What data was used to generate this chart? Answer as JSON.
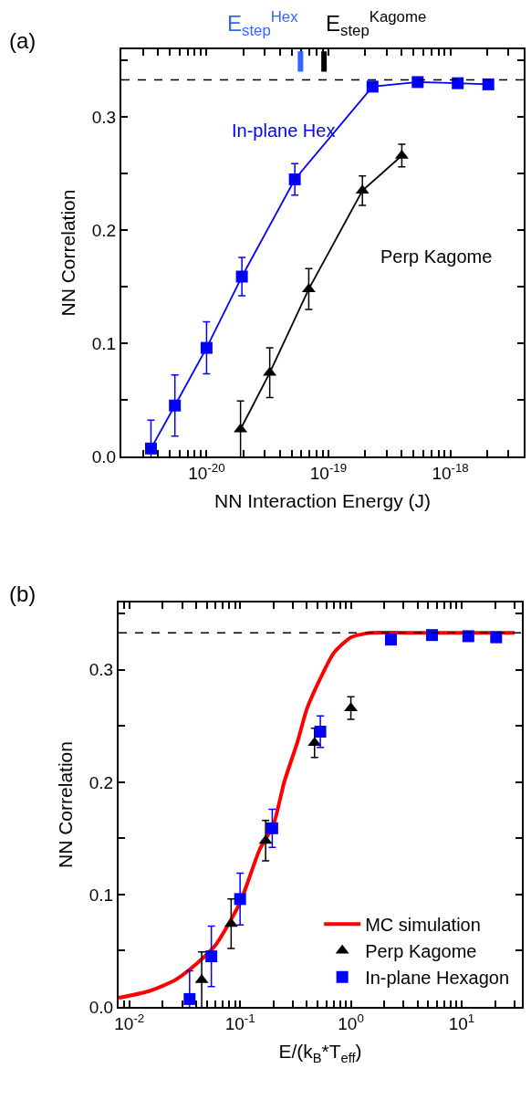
{
  "chart_data": [
    {
      "type": "line",
      "xlabel": "NN Interaction Energy (J)",
      "ylabel": "NN Correlation",
      "annotations": [
        "(a)"
      ],
      "log": "x",
      "legend": false,
      "xlim": [
        2e-21,
        4e-18
      ],
      "ylim": [
        0,
        0.36
      ],
      "xticks": [
        {
          "value": 2e-21,
          "label": null
        },
        {
          "value": 3e-21,
          "label": null
        },
        {
          "value": 4e-21,
          "label": null
        },
        {
          "value": 5e-21,
          "label": null
        },
        {
          "value": 6e-21,
          "label": null
        },
        {
          "value": 7e-21,
          "label": null
        },
        {
          "value": 8e-21,
          "label": null
        },
        {
          "value": 9e-21,
          "label": null
        },
        {
          "value": 1e-20,
          "label": "10$^{-20}$"
        },
        {
          "value": 2e-20,
          "label": null
        },
        {
          "value": 3e-20,
          "label": null
        },
        {
          "value": 4e-20,
          "label": null
        },
        {
          "value": 5e-20,
          "label": null
        },
        {
          "value": 6e-20,
          "label": null
        },
        {
          "value": 7e-20,
          "label": null
        },
        {
          "value": 8e-20,
          "label": null
        },
        {
          "value": 9e-20,
          "label": null
        },
        {
          "value": 1e-19,
          "label": "10$^{-19}$"
        },
        {
          "value": 2e-19,
          "label": null
        },
        {
          "value": 3e-19,
          "label": null
        },
        {
          "value": 4e-19,
          "label": null
        },
        {
          "value": 5e-19,
          "label": null
        },
        {
          "value": 6e-19,
          "label": null
        },
        {
          "value": 7e-19,
          "label": null
        },
        {
          "value": 8e-19,
          "label": null
        },
        {
          "value": 9e-19,
          "label": null
        },
        {
          "value": 1e-18,
          "label": "10$^{-18}$"
        },
        {
          "value": 2e-18,
          "label": null
        },
        {
          "value": 3e-18,
          "label": null
        },
        {
          "value": 4e-18,
          "label": null
        }
      ],
      "yticks": [
        {
          "value": 0,
          "label": "0.0"
        },
        {
          "value": 0.05,
          "label": null
        },
        {
          "value": 0.1,
          "label": "0.1"
        },
        {
          "value": 0.15,
          "label": null
        },
        {
          "value": 0.2,
          "label": "0.2"
        },
        {
          "value": 0.25,
          "label": null
        },
        {
          "value": 0.3,
          "label": "0.3"
        },
        {
          "value": 0.35,
          "label": null
        }
      ],
      "ref_lines": [
        {
          "axis": "y",
          "value": 0.333,
          "label": null,
          "color": "#000000",
          "line_style": "dashed"
        },
        {
          "axis": "x",
          "value": 5.9e-20,
          "label": "E$_{step}$$^{Hex}$",
          "color": "#3366ff"
        },
        {
          "axis": "x",
          "value": 9.2e-20,
          "label": "E$_{step}$$^{Kagome}$",
          "color": "#000000"
        }
      ],
      "series": [
        {
          "name": "In-plane Hex",
          "color": "#0000ff",
          "marker": "square",
          "x": [
            3.5e-21,
            5.5e-21,
            1e-20,
            1.95e-20,
            5.3e-20,
            2.3e-19,
            5.4e-19,
            1.15e-18,
            2.05e-18
          ],
          "values": [
            0.007,
            0.045,
            0.096,
            0.159,
            0.245,
            0.327,
            0.331,
            0.33,
            0.329
          ],
          "errors": [
            0.025,
            0.027,
            0.023,
            0.017,
            0.014,
            null,
            null,
            null,
            null
          ]
        },
        {
          "name": "Perp Kagome",
          "color": "#000000",
          "marker": "triangle",
          "x": [
            1.9e-20,
            3.3e-20,
            6.9e-20,
            1.9e-19,
            4e-19
          ],
          "values": [
            0.024,
            0.074,
            0.148,
            0.235,
            0.266
          ],
          "errors": [
            0.025,
            0.022,
            0.018,
            0.013,
            0.01
          ]
        }
      ]
    },
    {
      "type": "scatter",
      "xlabel": "E/(k$_{B}$*T$_{eff}$)",
      "ylabel": "NN Correlation",
      "annotations": [
        "(b)"
      ],
      "log": "x",
      "legend": "bottom right",
      "xlim": [
        0.008,
        35
      ],
      "ylim": [
        0,
        0.36
      ],
      "xticks": [
        {
          "value": 0.008,
          "label": null
        },
        {
          "value": 0.009,
          "label": null
        },
        {
          "value": 0.01,
          "label": "10$^{-2}$"
        },
        {
          "value": 0.02,
          "label": null
        },
        {
          "value": 0.03,
          "label": null
        },
        {
          "value": 0.04,
          "label": null
        },
        {
          "value": 0.05,
          "label": null
        },
        {
          "value": 0.06,
          "label": null
        },
        {
          "value": 0.07,
          "label": null
        },
        {
          "value": 0.08,
          "label": null
        },
        {
          "value": 0.09,
          "label": null
        },
        {
          "value": 0.1,
          "label": "10$^{-1}$"
        },
        {
          "value": 0.2,
          "label": null
        },
        {
          "value": 0.3,
          "label": null
        },
        {
          "value": 0.4,
          "label": null
        },
        {
          "value": 0.5,
          "label": null
        },
        {
          "value": 0.6,
          "label": null
        },
        {
          "value": 0.7,
          "label": null
        },
        {
          "value": 0.8,
          "label": null
        },
        {
          "value": 0.9,
          "label": null
        },
        {
          "value": 1,
          "label": "10$^{0}$"
        },
        {
          "value": 2,
          "label": null
        },
        {
          "value": 3,
          "label": null
        },
        {
          "value": 4,
          "label": null
        },
        {
          "value": 5,
          "label": null
        },
        {
          "value": 6,
          "label": null
        },
        {
          "value": 7,
          "label": null
        },
        {
          "value": 8,
          "label": null
        },
        {
          "value": 9,
          "label": null
        },
        {
          "value": 10,
          "label": "10$^{1}$"
        },
        {
          "value": 20,
          "label": null
        },
        {
          "value": 30,
          "label": null
        }
      ],
      "yticks": [
        {
          "value": 0,
          "label": "0.0"
        },
        {
          "value": 0.05,
          "label": null
        },
        {
          "value": 0.1,
          "label": "0.1"
        },
        {
          "value": 0.15,
          "label": null
        },
        {
          "value": 0.2,
          "label": "0.2"
        },
        {
          "value": 0.25,
          "label": null
        },
        {
          "value": 0.3,
          "label": "0.3"
        },
        {
          "value": 0.35,
          "label": null
        }
      ],
      "ref_lines": [
        {
          "axis": "y",
          "value": 0.333,
          "label": null,
          "color": "#000000",
          "line_style": "dashed"
        }
      ],
      "series": [
        {
          "name": "MC simulation",
          "type": "line",
          "color": "#ff0000",
          "marker": "none",
          "x": [
            0.008,
            0.015,
            0.026,
            0.04,
            0.06,
            0.1,
            0.15,
            0.2,
            0.25,
            0.33,
            0.4,
            0.54,
            0.7,
            1.0,
            1.5,
            3,
            10,
            30
          ],
          "values": [
            0.008,
            0.014,
            0.024,
            0.038,
            0.055,
            0.093,
            0.14,
            0.162,
            0.2,
            0.236,
            0.265,
            0.294,
            0.315,
            0.329,
            0.333,
            0.333,
            0.333,
            0.333
          ]
        },
        {
          "name": "Perp Kagome",
          "type": "scatter",
          "color": "#000000",
          "marker": "triangle",
          "x": [
            0.045,
            0.083,
            0.17,
            0.47,
            1.0
          ],
          "values": [
            0.024,
            0.074,
            0.148,
            0.235,
            0.266
          ],
          "errors": [
            0.025,
            0.022,
            0.018,
            0.013,
            0.01
          ]
        },
        {
          "name": "In-plane Hexagon",
          "type": "scatter",
          "color": "#0000ff",
          "marker": "square",
          "x": [
            0.035,
            0.055,
            0.1,
            0.195,
            0.53,
            2.3,
            5.4,
            11.5,
            20.5
          ],
          "values": [
            0.007,
            0.045,
            0.096,
            0.159,
            0.245,
            0.327,
            0.331,
            0.33,
            0.329
          ],
          "errors": [
            0.025,
            0.027,
            0.023,
            0.017,
            0.014,
            null,
            null,
            null,
            null
          ]
        }
      ]
    }
  ]
}
